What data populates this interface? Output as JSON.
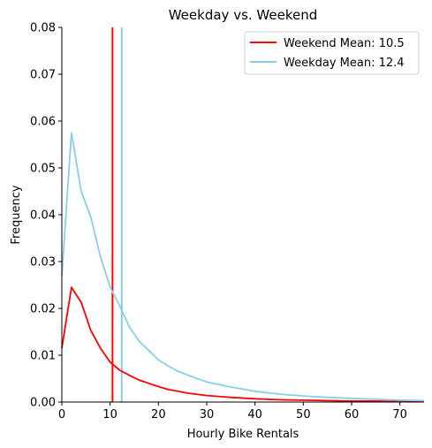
{
  "chart_data": {
    "type": "line",
    "title": "Weekday vs. Weekend",
    "xlabel": "Hourly Bike Rentals",
    "ylabel": "Frequency",
    "xlim": [
      0,
      75
    ],
    "ylim": [
      0,
      0.08
    ],
    "xticks": [
      0,
      10,
      20,
      30,
      40,
      50,
      60,
      70
    ],
    "yticks": [
      0.0,
      0.01,
      0.02,
      0.03,
      0.04,
      0.05,
      0.06,
      0.07,
      0.08
    ],
    "ytick_labels": [
      "0.00",
      "0.01",
      "0.02",
      "0.03",
      "0.04",
      "0.05",
      "0.06",
      "0.07",
      "0.08"
    ],
    "grid": false,
    "legend_position": "top-right",
    "series": [
      {
        "name": "Weekend",
        "color": "#ff0000",
        "x": [
          0,
          2,
          4,
          6,
          8,
          10,
          12,
          14,
          16,
          18,
          20,
          22,
          24,
          26,
          30,
          35,
          40,
          45,
          50,
          55,
          60,
          65,
          70,
          75
        ],
        "y": [
          0.0115,
          0.0245,
          0.0213,
          0.0153,
          0.0115,
          0.0085,
          0.0068,
          0.0057,
          0.0047,
          0.004,
          0.0033,
          0.0027,
          0.0023,
          0.0019,
          0.0014,
          0.001,
          0.0007,
          0.0005,
          0.0004,
          0.0003,
          0.0002,
          0.0002,
          0.0001,
          0.0001
        ]
      },
      {
        "name": "Weekday",
        "color": "#87ceeb",
        "x": [
          0,
          2,
          4,
          6,
          8,
          10,
          12,
          14,
          16,
          18,
          20,
          22,
          24,
          26,
          28,
          30,
          35,
          40,
          45,
          50,
          55,
          60,
          65,
          70,
          75
        ],
        "y": [
          0.027,
          0.0575,
          0.045,
          0.0395,
          0.031,
          0.0245,
          0.0205,
          0.016,
          0.013,
          0.011,
          0.009,
          0.0077,
          0.0066,
          0.0058,
          0.005,
          0.0043,
          0.0032,
          0.0023,
          0.0017,
          0.0013,
          0.001,
          0.0008,
          0.0006,
          0.0004,
          0.0003
        ]
      }
    ],
    "vlines": [
      {
        "name": "Weekend Mean: 10.5",
        "x": 10.5,
        "color": "#ff0000"
      },
      {
        "name": "Weekday Mean: 12.4",
        "x": 12.4,
        "color": "#87ceeb"
      }
    ]
  }
}
